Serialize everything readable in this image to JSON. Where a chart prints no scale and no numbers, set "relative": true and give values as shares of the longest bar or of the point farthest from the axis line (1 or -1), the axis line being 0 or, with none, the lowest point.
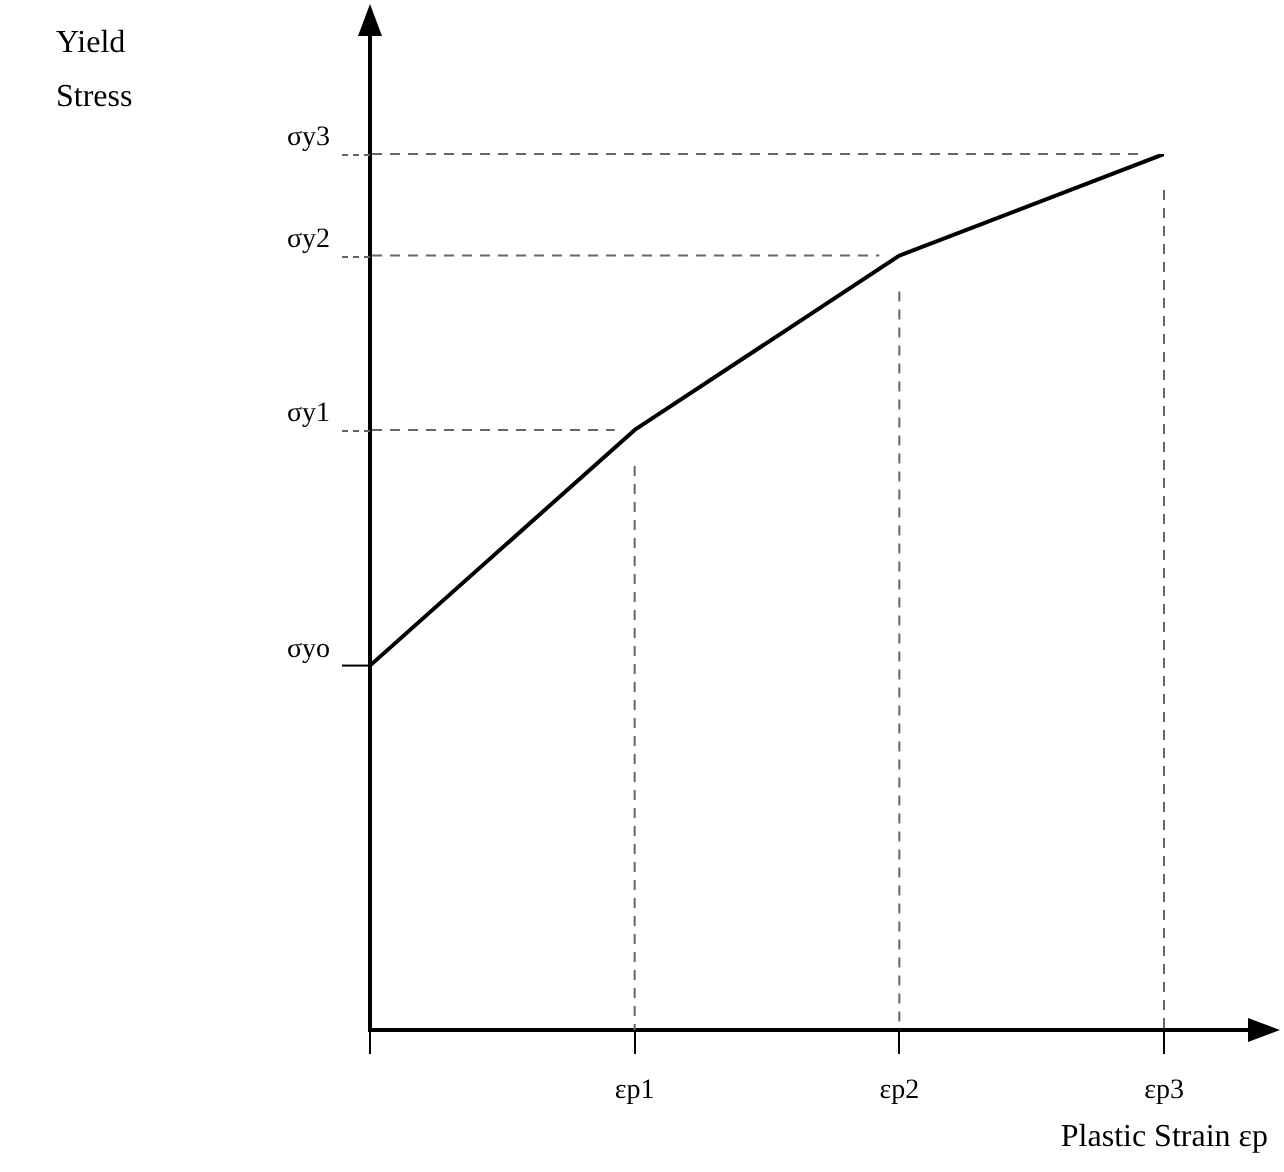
{
  "chart_data": {
    "type": "line",
    "xlabel": "Plastic Strain εp",
    "annotations": [
      "Yield Stress"
    ],
    "categories": [
      null,
      "εp1",
      "εp2",
      "εp3"
    ],
    "values": [
      0.416,
      0.685,
      0.884,
      1
    ],
    "relative": true,
    "color": "#000000",
    "marker": "none",
    "line_style": "solid",
    "ref_lines": [
      {
        "axis": "y",
        "value": 0.416,
        "label": "σyo"
      },
      {
        "axis": "y",
        "value": 0.685,
        "label": "σy1",
        "line_style": "dashed",
        "color": "#666666"
      },
      {
        "axis": "y",
        "value": 0.884,
        "label": "σy2",
        "line_style": "dashed",
        "color": "#666666"
      },
      {
        "axis": "y",
        "value": 1,
        "label": "σy3",
        "line_style": "dashed",
        "color": "#666666"
      },
      {
        "axis": "x",
        "value": "εp1",
        "line_style": "dashed",
        "color": "#666666"
      },
      {
        "axis": "x",
        "value": "εp2",
        "line_style": "dashed",
        "color": "#666666"
      },
      {
        "axis": "x",
        "value": "εp3",
        "line_style": "dashed",
        "color": "#666666"
      }
    ]
  }
}
